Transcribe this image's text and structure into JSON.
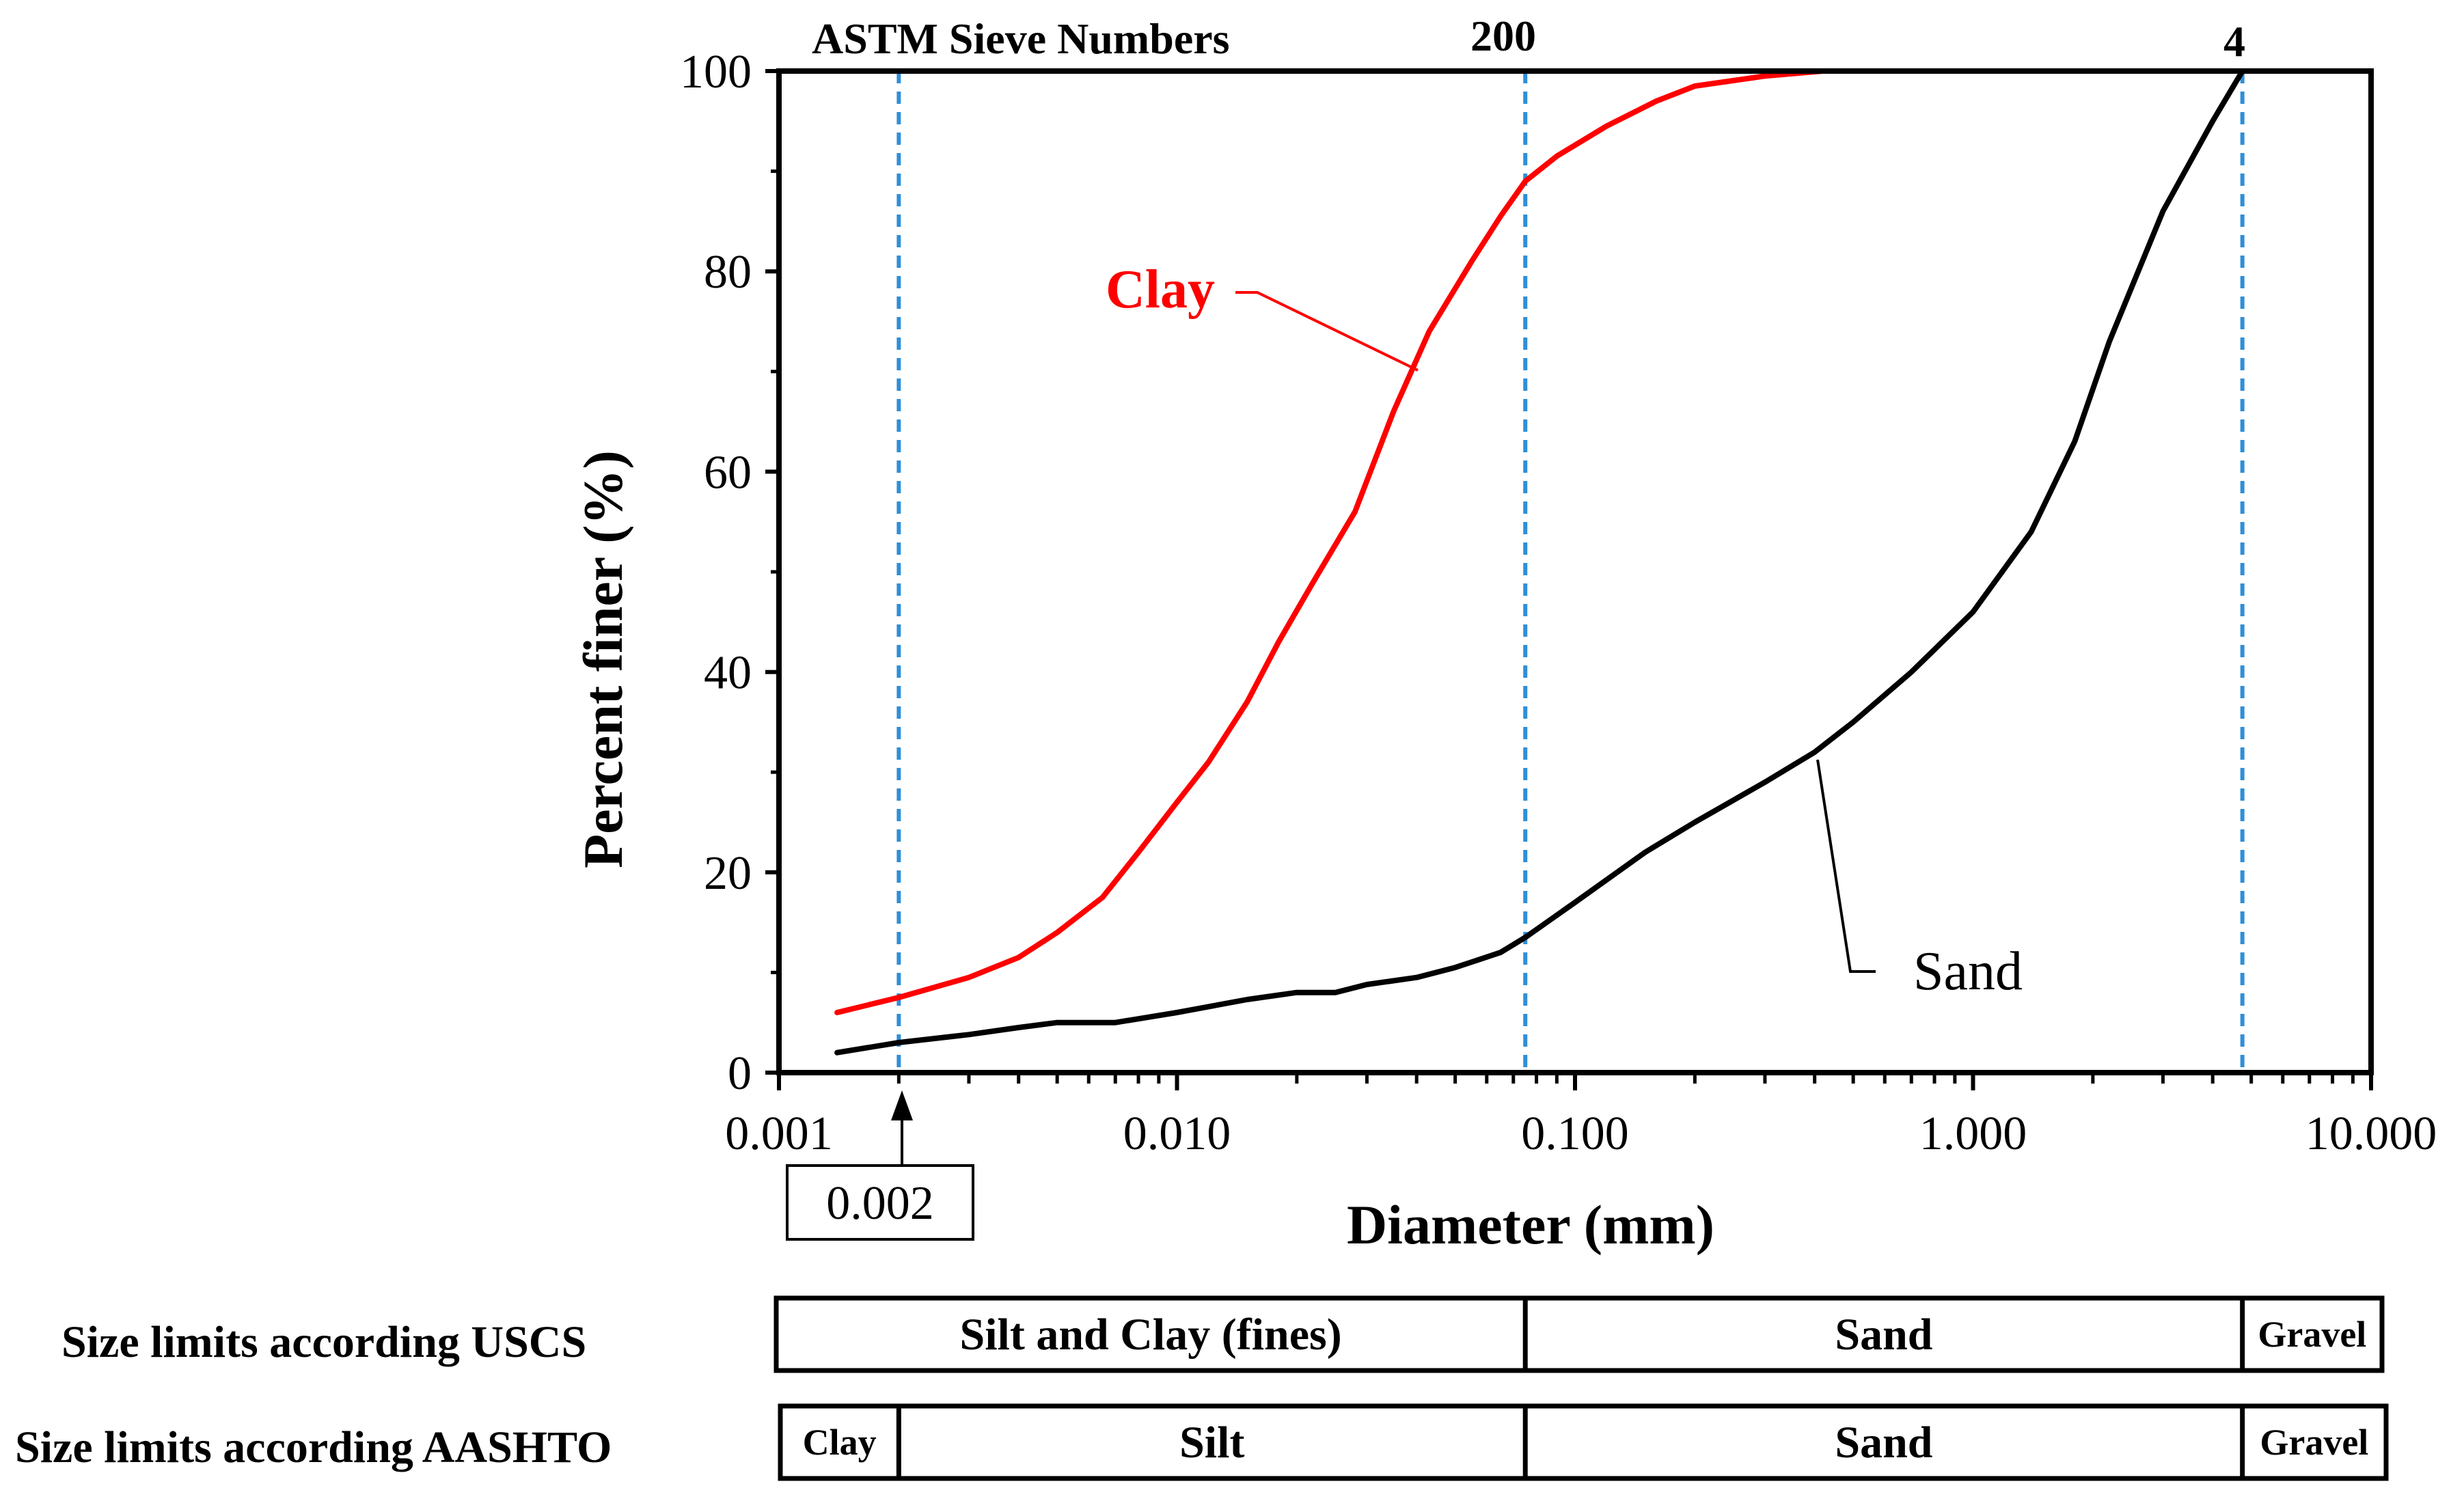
{
  "chart_data": {
    "type": "line",
    "xlabel": "Diameter (mm)",
    "ylabel": "Percent finer (%)",
    "x_scale": "log",
    "xlim": [
      0.001,
      10
    ],
    "ylim": [
      0,
      100
    ],
    "x_ticks": [
      0.001,
      0.01,
      0.1,
      1,
      10
    ],
    "x_tick_labels": [
      "0.001",
      "0.010",
      "0.100",
      "1.000",
      "10.000"
    ],
    "y_ticks": [
      0,
      20,
      40,
      60,
      80,
      100
    ],
    "y_tick_labels": [
      "0",
      "20",
      "40",
      "60",
      "80",
      "100"
    ],
    "series": [
      {
        "name": "Clay",
        "color": "#ff0000",
        "x": [
          0.0014,
          0.002,
          0.003,
          0.004,
          0.005,
          0.0065,
          0.008,
          0.01,
          0.012,
          0.015,
          0.018,
          0.022,
          0.028,
          0.035,
          0.043,
          0.055,
          0.065,
          0.075,
          0.09,
          0.12,
          0.16,
          0.2,
          0.3,
          0.42
        ],
        "y": [
          6,
          7.5,
          9.5,
          11.5,
          14,
          17.5,
          22,
          27,
          31,
          37,
          43,
          49,
          56,
          66,
          74,
          81,
          85.5,
          89,
          91.5,
          94.5,
          97,
          98.5,
          99.5,
          100
        ]
      },
      {
        "name": "Sand",
        "color": "#000000",
        "x": [
          0.0014,
          0.002,
          0.003,
          0.004,
          0.005,
          0.007,
          0.01,
          0.015,
          0.02,
          0.025,
          0.03,
          0.04,
          0.05,
          0.065,
          0.075,
          0.1,
          0.15,
          0.2,
          0.3,
          0.4,
          0.5,
          0.7,
          1,
          1.4,
          1.8,
          2.2,
          3,
          4,
          4.75
        ],
        "y": [
          2,
          3,
          3.8,
          4.5,
          5,
          5,
          6,
          7.3,
          8,
          8,
          8.8,
          9.5,
          10.5,
          12,
          13.5,
          17,
          22,
          25,
          29,
          32,
          35,
          40,
          46,
          54,
          63,
          73,
          86,
          95,
          100
        ]
      }
    ],
    "reference_lines_x": [
      0.002,
      0.075,
      4.75
    ],
    "sieve_title": "ASTM Sieve Numbers",
    "sieve_labels": [
      {
        "x": 0.075,
        "label": "200"
      },
      {
        "x": 4.75,
        "label": "4"
      }
    ],
    "annotations": {
      "clay_label": "Clay",
      "sand_label": "Sand",
      "marker_value": "0.002"
    },
    "classification_rows": [
      {
        "label": "Size limits according USCS",
        "zones": [
          {
            "name": "Silt and Clay (fines)",
            "from": 0.001,
            "to": 0.075
          },
          {
            "name": "Sand",
            "from": 0.075,
            "to": 4.75
          },
          {
            "name": "Gravel",
            "from": 4.75,
            "to": 10
          }
        ]
      },
      {
        "label": "Size limits according AASHTO",
        "zones": [
          {
            "name": "Clay",
            "from": 0.001,
            "to": 0.002
          },
          {
            "name": "Silt",
            "from": 0.002,
            "to": 0.075
          },
          {
            "name": "Sand",
            "from": 0.075,
            "to": 4.75
          },
          {
            "name": "Gravel",
            "from": 4.75,
            "to": 10
          }
        ]
      }
    ]
  }
}
